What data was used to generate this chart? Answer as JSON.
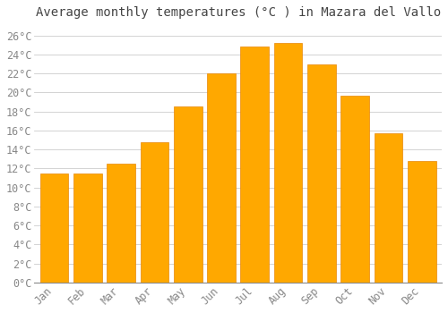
{
  "title": "Average monthly temperatures (°C ) in Mazara del Vallo",
  "months": [
    "Jan",
    "Feb",
    "Mar",
    "Apr",
    "May",
    "Jun",
    "Jul",
    "Aug",
    "Sep",
    "Oct",
    "Nov",
    "Dec"
  ],
  "temperatures": [
    11.5,
    11.5,
    12.5,
    14.8,
    18.5,
    22.0,
    24.8,
    25.2,
    23.0,
    19.7,
    15.7,
    12.8
  ],
  "bar_color": "#FFA800",
  "bar_edge_color": "#E8880A",
  "background_color": "#FFFFFF",
  "grid_color": "#CCCCCC",
  "ytick_min": 0,
  "ytick_max": 26,
  "ytick_step": 2,
  "title_fontsize": 10,
  "tick_fontsize": 8.5,
  "font_family": "monospace",
  "tick_color": "#888888",
  "title_color": "#444444"
}
